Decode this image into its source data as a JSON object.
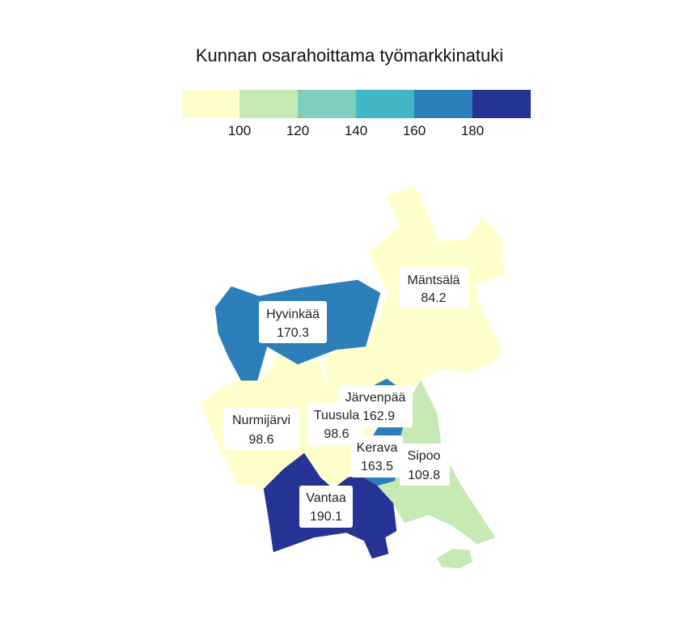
{
  "title": "Kunnan osarahoittama työmarkkinatuki",
  "legend": {
    "colors": [
      "#ffffcc",
      "#c7e9b4",
      "#7fcdbb",
      "#41b6c4",
      "#2c7fb8",
      "#253494"
    ],
    "ticks": [
      "100",
      "120",
      "140",
      "160",
      "180"
    ]
  },
  "regions": [
    {
      "name": "Mäntsälä",
      "value": "84.2",
      "color": "#ffffcc"
    },
    {
      "name": "Hyvinkää",
      "value": "170.3",
      "color": "#2c7fb8"
    },
    {
      "name": "Järvenpää",
      "value": "162.9",
      "color": "#2c7fb8"
    },
    {
      "name": "Nurmijärvi",
      "value": "98.6",
      "color": "#ffffcc"
    },
    {
      "name": "Tuusula",
      "value": "98.6",
      "color": "#ffffcc"
    },
    {
      "name": "Kerava",
      "value": "163.5",
      "color": "#2c7fb8"
    },
    {
      "name": "Sipoo",
      "value": "109.8",
      "color": "#c7e9b4"
    },
    {
      "name": "Vantaa",
      "value": "190.1",
      "color": "#253494"
    }
  ]
}
